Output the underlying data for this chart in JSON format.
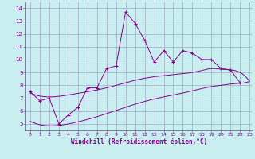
{
  "xlabel": "Windchill (Refroidissement éolien,°C)",
  "background_color": "#c8eef0",
  "grid_color": "#9999bb",
  "line_color": "#880088",
  "x_min": -0.5,
  "x_max": 23.3,
  "y_min": 4.5,
  "y_max": 14.5,
  "yticks": [
    5,
    6,
    7,
    8,
    9,
    10,
    11,
    12,
    13,
    14
  ],
  "xticks": [
    0,
    1,
    2,
    3,
    4,
    5,
    6,
    7,
    8,
    9,
    10,
    11,
    12,
    13,
    14,
    15,
    16,
    17,
    18,
    19,
    20,
    21,
    22,
    23
  ],
  "curve1_x": [
    0,
    1,
    2,
    3,
    4,
    5,
    6,
    7,
    8,
    9,
    10,
    11,
    12,
    13,
    14,
    15,
    16,
    17,
    18,
    19,
    20,
    21,
    22
  ],
  "curve1_y": [
    7.5,
    6.8,
    7.0,
    5.0,
    5.7,
    6.3,
    7.8,
    7.8,
    9.3,
    9.5,
    13.7,
    12.8,
    11.5,
    9.8,
    10.7,
    9.8,
    10.7,
    10.5,
    10.0,
    10.0,
    9.3,
    9.2,
    8.2
  ],
  "upper_smooth_x": [
    0,
    2,
    4,
    6,
    8,
    10,
    12,
    14,
    16,
    18,
    19,
    20,
    21,
    22,
    23
  ],
  "upper_smooth_y": [
    7.4,
    7.1,
    7.25,
    7.5,
    7.8,
    8.2,
    8.55,
    8.75,
    8.9,
    9.15,
    9.3,
    9.25,
    9.2,
    9.0,
    8.3
  ],
  "lower_smooth_x": [
    0,
    2,
    4,
    6,
    8,
    10,
    12,
    14,
    16,
    18,
    19,
    20,
    21,
    22,
    23
  ],
  "lower_smooth_y": [
    5.2,
    4.85,
    5.0,
    5.35,
    5.8,
    6.3,
    6.75,
    7.1,
    7.4,
    7.75,
    7.9,
    8.0,
    8.1,
    8.15,
    8.3
  ]
}
